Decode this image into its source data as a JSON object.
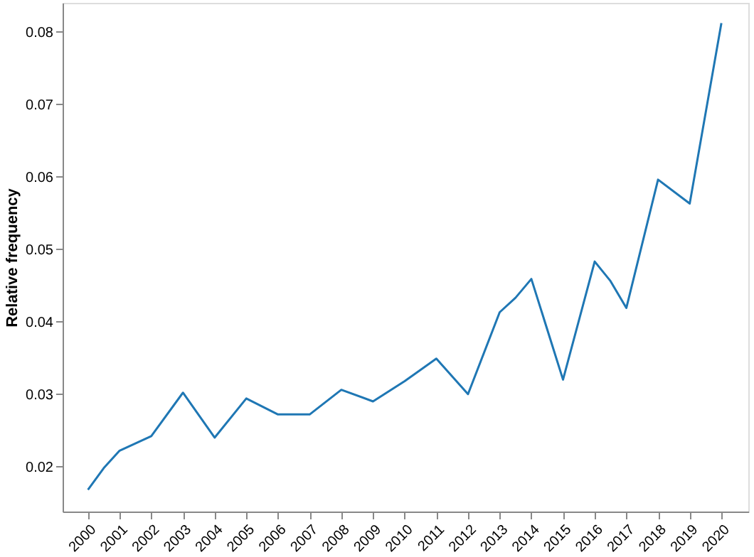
{
  "chart_data": {
    "type": "line",
    "ylabel": "Relative frequency",
    "x": [
      2000,
      2000.5,
      2001,
      2002,
      2003,
      2004,
      2005,
      2006,
      2007,
      2008,
      2009,
      2010,
      2011,
      2012,
      2013,
      2013.5,
      2014,
      2015,
      2016,
      2016.5,
      2017,
      2018,
      2019,
      2020
    ],
    "series": [
      {
        "color": "#1f77b4",
        "values": [
          0.0168,
          0.0198,
          0.0222,
          0.0242,
          0.0302,
          0.024,
          0.0294,
          0.0272,
          0.0272,
          0.0306,
          0.029,
          0.0318,
          0.0349,
          0.03,
          0.0413,
          0.0433,
          0.0459,
          0.032,
          0.0483,
          0.0456,
          0.0419,
          0.0596,
          0.0563,
          0.0812
        ]
      }
    ],
    "xlim": [
      1999.2,
      2020.85
    ],
    "ylim": [
      0.0138,
      0.084
    ],
    "xticks": [
      2000,
      2001,
      2002,
      2003,
      2004,
      2005,
      2006,
      2007,
      2008,
      2009,
      2010,
      2011,
      2012,
      2013,
      2014,
      2015,
      2016,
      2017,
      2018,
      2019,
      2020
    ],
    "yticks": [
      0.02,
      0.03,
      0.04,
      0.05,
      0.06,
      0.07,
      0.08
    ],
    "grid": false,
    "marker": "none",
    "line_style": "solid",
    "legend": false
  }
}
